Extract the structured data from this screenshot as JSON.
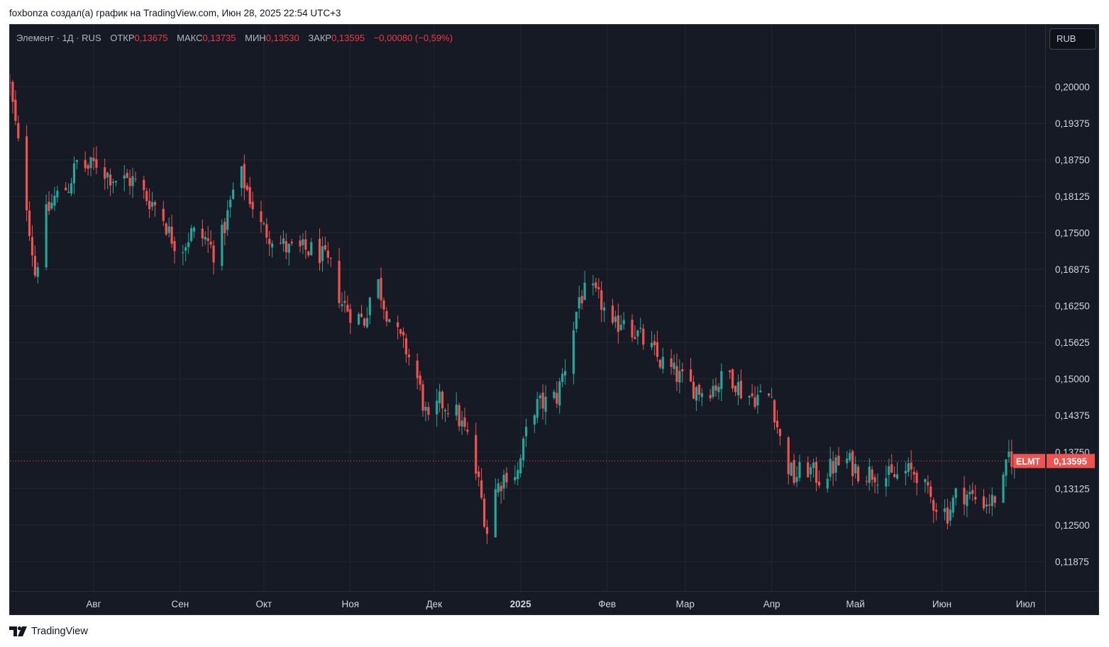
{
  "header": {
    "caption": "foxbonza создал(а) график на TradingView.com, Июн 28, 2025 22:54 UTC+3"
  },
  "legend": {
    "symbol_line": "Элемент · 1Д · RUS",
    "open_label": "ОТКР",
    "open_value": "0,13675",
    "high_label": "МАКС",
    "high_value": "0,13735",
    "low_label": "МИН",
    "low_value": "0,13530",
    "close_label": "ЗАКР",
    "close_value": "0,13595",
    "change": "−0,00080 (−0,59%)"
  },
  "currency_button": "RUB",
  "footer": {
    "brand": "TradingView",
    "logo_icon": "tradingview-logo-icon"
  },
  "colors": {
    "up": "#26a69a",
    "down": "#ef5350",
    "background": "#161a25",
    "grid": "#232632",
    "axis_text": "#d1d4dc"
  },
  "chart_data": {
    "type": "candlestick",
    "symbol": "ELMT",
    "last_price": 0.13595,
    "last_price_label": "0,13595",
    "ylim": [
      0.1137,
      0.2106
    ],
    "y_ticks": [
      {
        "value": 0.2,
        "label": "0,20000"
      },
      {
        "value": 0.19375,
        "label": "0,19375"
      },
      {
        "value": 0.1875,
        "label": "0,18750"
      },
      {
        "value": 0.18125,
        "label": "0,18125"
      },
      {
        "value": 0.175,
        "label": "0,17500"
      },
      {
        "value": 0.16875,
        "label": "0,16875"
      },
      {
        "value": 0.1625,
        "label": "0,16250"
      },
      {
        "value": 0.15625,
        "label": "0,15625"
      },
      {
        "value": 0.15,
        "label": "0,15000"
      },
      {
        "value": 0.14375,
        "label": "0,14375"
      },
      {
        "value": 0.1375,
        "label": "0,13750"
      },
      {
        "value": 0.13125,
        "label": "0,13125"
      },
      {
        "value": 0.125,
        "label": "0,12500"
      },
      {
        "value": 0.11875,
        "label": "0,11875"
      }
    ],
    "x_start": "2024-07-02",
    "x_end": "2025-07-08",
    "x_ticks": [
      {
        "date": "2024-08-01",
        "label": "Авг",
        "bold": false
      },
      {
        "date": "2024-09-01",
        "label": "Сен",
        "bold": false
      },
      {
        "date": "2024-10-01",
        "label": "Окт",
        "bold": false
      },
      {
        "date": "2024-11-01",
        "label": "Ноя",
        "bold": false
      },
      {
        "date": "2024-12-01",
        "label": "Дек",
        "bold": false
      },
      {
        "date": "2025-01-01",
        "label": "2025",
        "bold": true
      },
      {
        "date": "2025-02-01",
        "label": "Фев",
        "bold": false
      },
      {
        "date": "2025-03-01",
        "label": "Мар",
        "bold": false
      },
      {
        "date": "2025-04-01",
        "label": "Апр",
        "bold": false
      },
      {
        "date": "2025-05-01",
        "label": "Май",
        "bold": false
      },
      {
        "date": "2025-06-01",
        "label": "Июн",
        "bold": false
      },
      {
        "date": "2025-07-01",
        "label": "Июл",
        "bold": false
      }
    ],
    "close_series": [
      [
        "2024-07-02",
        0.2
      ],
      [
        "2024-07-08",
        0.18
      ],
      [
        "2024-07-11",
        0.168
      ],
      [
        "2024-07-15",
        0.178
      ],
      [
        "2024-07-18",
        0.181
      ],
      [
        "2024-07-23",
        0.183
      ],
      [
        "2024-07-26",
        0.187
      ],
      [
        "2024-07-30",
        0.186
      ],
      [
        "2024-08-02",
        0.187
      ],
      [
        "2024-08-06",
        0.185
      ],
      [
        "2024-08-10",
        0.184
      ],
      [
        "2024-08-15",
        0.184
      ],
      [
        "2024-08-20",
        0.181
      ],
      [
        "2024-08-25",
        0.179
      ],
      [
        "2024-08-28",
        0.175
      ],
      [
        "2024-09-01",
        0.172
      ],
      [
        "2024-09-05",
        0.175
      ],
      [
        "2024-09-10",
        0.174
      ],
      [
        "2024-09-14",
        0.171
      ],
      [
        "2024-09-18",
        0.178
      ],
      [
        "2024-09-22",
        0.186
      ],
      [
        "2024-09-26",
        0.181
      ],
      [
        "2024-09-30",
        0.176
      ],
      [
        "2024-10-05",
        0.174
      ],
      [
        "2024-10-10",
        0.172
      ],
      [
        "2024-10-15",
        0.172
      ],
      [
        "2024-10-20",
        0.172
      ],
      [
        "2024-10-25",
        0.169
      ],
      [
        "2024-10-29",
        0.163
      ],
      [
        "2024-11-02",
        0.161
      ],
      [
        "2024-11-06",
        0.16
      ],
      [
        "2024-11-10",
        0.168
      ],
      [
        "2024-11-13",
        0.163
      ],
      [
        "2024-11-17",
        0.158
      ],
      [
        "2024-11-21",
        0.155
      ],
      [
        "2024-11-25",
        0.15
      ],
      [
        "2024-11-29",
        0.142
      ],
      [
        "2024-12-03",
        0.146
      ],
      [
        "2024-12-08",
        0.145
      ],
      [
        "2024-12-13",
        0.14
      ],
      [
        "2024-12-17",
        0.132
      ],
      [
        "2024-12-20",
        0.124
      ],
      [
        "2024-12-23",
        0.131
      ],
      [
        "2024-12-27",
        0.134
      ],
      [
        "2024-12-31",
        0.134
      ],
      [
        "2025-01-05",
        0.145
      ],
      [
        "2025-01-10",
        0.146
      ],
      [
        "2025-01-14",
        0.147
      ],
      [
        "2025-01-18",
        0.154
      ],
      [
        "2025-01-22",
        0.164
      ],
      [
        "2025-01-26",
        0.165
      ],
      [
        "2025-01-30",
        0.163
      ],
      [
        "2025-02-03",
        0.158
      ],
      [
        "2025-02-07",
        0.161
      ],
      [
        "2025-02-11",
        0.158
      ],
      [
        "2025-02-15",
        0.156
      ],
      [
        "2025-02-20",
        0.153
      ],
      [
        "2025-02-25",
        0.151
      ],
      [
        "2025-03-02",
        0.149
      ],
      [
        "2025-03-07",
        0.148
      ],
      [
        "2025-03-12",
        0.149
      ],
      [
        "2025-03-17",
        0.151
      ],
      [
        "2025-03-21",
        0.148
      ],
      [
        "2025-03-25",
        0.147
      ],
      [
        "2025-03-29",
        0.147
      ],
      [
        "2025-04-01",
        0.147
      ],
      [
        "2025-04-05",
        0.137
      ],
      [
        "2025-04-09",
        0.133
      ],
      [
        "2025-04-13",
        0.135
      ],
      [
        "2025-04-18",
        0.133
      ],
      [
        "2025-04-23",
        0.135
      ],
      [
        "2025-04-28",
        0.136
      ],
      [
        "2025-05-03",
        0.134
      ],
      [
        "2025-05-08",
        0.134
      ],
      [
        "2025-05-14",
        0.133
      ],
      [
        "2025-05-19",
        0.134
      ],
      [
        "2025-05-23",
        0.134
      ],
      [
        "2025-05-27",
        0.13
      ],
      [
        "2025-05-31",
        0.128
      ],
      [
        "2025-06-03",
        0.127
      ],
      [
        "2025-06-07",
        0.131
      ],
      [
        "2025-06-11",
        0.13
      ],
      [
        "2025-06-15",
        0.129
      ],
      [
        "2025-06-19",
        0.129
      ],
      [
        "2025-06-23",
        0.132
      ],
      [
        "2025-06-25",
        0.137
      ],
      [
        "2025-06-27",
        0.13595
      ]
    ]
  }
}
